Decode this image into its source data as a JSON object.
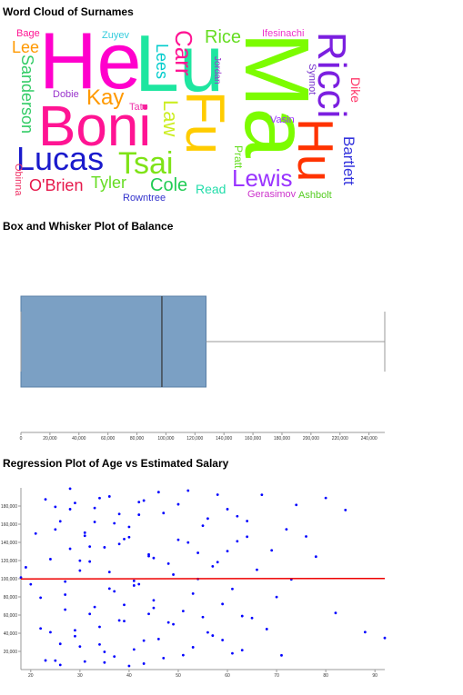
{
  "chart_data": [
    {
      "type": "wordcloud",
      "title": "Word Cloud of Surnames",
      "words": [
        {
          "text": "He",
          "value": 88,
          "color": "#ff00cc"
        },
        {
          "text": "Lu",
          "value": 88,
          "color": "#1ee6a0"
        },
        {
          "text": "Ma",
          "value": 100,
          "color": "#7cfc00"
        },
        {
          "text": "Boni",
          "value": 62,
          "color": "#ff1493"
        },
        {
          "text": "Lucas",
          "value": 36,
          "color": "#1a1acc"
        },
        {
          "text": "Tsai",
          "value": 34,
          "color": "#7fe317"
        },
        {
          "text": "Fu",
          "value": 60,
          "color": "#ffcc00"
        },
        {
          "text": "Hu",
          "value": 55,
          "color": "#ff3300"
        },
        {
          "text": "Ricci",
          "value": 44,
          "color": "#7b1fe0"
        },
        {
          "text": "Carr",
          "value": 26,
          "color": "#ff1493"
        },
        {
          "text": "Rice",
          "value": 20,
          "color": "#66dd22"
        },
        {
          "text": "Lewis",
          "value": 26,
          "color": "#9933ff"
        },
        {
          "text": "Kay",
          "value": 24,
          "color": "#ff9900"
        },
        {
          "text": "Sanderson",
          "value": 18,
          "color": "#33cc66"
        },
        {
          "text": "Lee",
          "value": 18,
          "color": "#ff9900"
        },
        {
          "text": "Bage",
          "value": 11,
          "color": "#ff1493"
        },
        {
          "text": "Zuyev",
          "value": 11,
          "color": "#33ccdd"
        },
        {
          "text": "Lees",
          "value": 18,
          "color": "#00cccc"
        },
        {
          "text": "Law",
          "value": 22,
          "color": "#ccee22"
        },
        {
          "text": "Cole",
          "value": 20,
          "color": "#22cc55"
        },
        {
          "text": "Tyler",
          "value": 18,
          "color": "#66dd22"
        },
        {
          "text": "O'Brien",
          "value": 18,
          "color": "#e6194b"
        },
        {
          "text": "Read",
          "value": 14,
          "color": "#22ddaa"
        },
        {
          "text": "Rowntree",
          "value": 11,
          "color": "#3333cc"
        },
        {
          "text": "Gerasimov",
          "value": 11,
          "color": "#cc33cc"
        },
        {
          "text": "Ashbolt",
          "value": 11,
          "color": "#55cc22"
        },
        {
          "text": "Bartlett",
          "value": 17,
          "color": "#3333dd"
        },
        {
          "text": "Dike",
          "value": 14,
          "color": "#ff3366"
        },
        {
          "text": "Vasin",
          "value": 11,
          "color": "#9933ff"
        },
        {
          "text": "Pratt",
          "value": 12,
          "color": "#66dd22"
        },
        {
          "text": "Obinna",
          "value": 11,
          "color": "#ee3366"
        },
        {
          "text": "Dobie",
          "value": 11,
          "color": "#9933cc"
        },
        {
          "text": "Tate",
          "value": 11,
          "color": "#ee33aa"
        },
        {
          "text": "Jordan",
          "value": 10,
          "color": "#9933cc"
        },
        {
          "text": "Ifesinachi",
          "value": 11,
          "color": "#ee33cc"
        },
        {
          "text": "Synnot",
          "value": 11,
          "color": "#7733cc"
        }
      ]
    },
    {
      "type": "box",
      "title": "Box and Whisker Plot of Balance",
      "min": 0,
      "q1": 0,
      "median": 97199,
      "q3": 127644,
      "max": 250898,
      "color": "#7ba0c4",
      "xlim": [
        0,
        250898
      ],
      "xticks": [
        0,
        {
          "value": 20000,
          "label": "20,000"
        },
        {
          "value": 40000,
          "label": "40,000"
        },
        {
          "value": 60000,
          "label": "60,000"
        },
        {
          "value": 80000,
          "label": "80,000"
        },
        {
          "value": 100000,
          "label": "100,000"
        },
        {
          "value": 120000,
          "label": "120,000"
        },
        {
          "value": 140000,
          "label": "140,000"
        },
        {
          "value": 160000,
          "label": "160,000"
        },
        {
          "value": 180000,
          "label": "180,000"
        },
        {
          "value": 200000,
          "label": "200,000"
        },
        {
          "value": 220000,
          "label": "220,000"
        },
        {
          "value": 240000,
          "label": "240,000"
        }
      ]
    },
    {
      "type": "scatter",
      "title": "Regression Plot of Age vs Estimated Salary",
      "color": "#0000ff",
      "x": [
        18,
        19,
        20,
        21,
        22,
        23,
        24,
        25,
        26,
        27,
        28,
        29,
        30,
        31,
        32,
        33,
        34,
        35,
        36,
        37,
        38,
        39,
        40,
        41,
        42,
        43,
        44,
        45,
        46,
        47,
        48,
        49,
        50,
        51,
        52,
        53,
        54,
        55,
        56,
        57,
        25,
        26,
        27,
        28,
        29,
        30,
        31,
        32,
        33,
        34,
        35,
        36,
        37,
        38,
        39,
        40,
        41,
        42,
        43,
        44,
        45,
        46,
        47,
        48,
        49,
        50,
        51,
        52,
        53,
        54,
        55,
        56,
        57,
        58,
        59,
        60,
        61,
        62,
        63,
        64,
        22,
        23,
        24,
        25,
        26,
        27,
        28,
        29,
        30,
        31,
        32,
        33,
        34,
        35,
        36,
        37,
        38,
        39,
        40,
        41,
        42,
        43,
        44,
        45,
        58,
        59,
        60,
        61,
        62,
        63,
        64,
        65,
        66,
        67,
        68,
        69,
        70,
        71,
        72,
        73,
        74,
        76,
        78,
        80,
        82,
        84,
        88,
        92
      ],
      "values": [
        101348,
        112542,
        93826,
        149756,
        79084,
        10062,
        41132,
        179093,
        5097,
        65951,
        132940,
        183376,
        25398,
        147223,
        118913,
        162456,
        47012,
        7802,
        190542,
        86127,
        138213,
        71216,
        157033,
        22150,
        94001,
        186044,
        61244,
        122790,
        33657,
        172310,
        51872,
        104550,
        142897,
        15832,
        197006,
        83612,
        128460,
        57734,
        166210,
        37420,
        154220,
        28310,
        96880,
        176540,
        43220,
        119870,
        8850,
        135400,
        68900,
        188760,
        19450,
        107330,
        160990,
        54120,
        143650,
        3980,
        92540,
        170420,
        31870,
        126740,
        76230,
        195310,
        12640,
        116590,
        49870,
        181920,
        64410,
        139880,
        24560,
        99730,
        158340,
        40910,
        113620,
        192470,
        72180,
        130350,
        17890,
        168750,
        58930,
        146210,
        45230,
        187340,
        121560,
        9870,
        163210,
        82450,
        199120,
        36780,
        108940,
        150670,
        61230,
        177890,
        27650,
        134560,
        89120,
        14320,
        171230,
        53340,
        145780,
        97650,
        184320,
        6540,
        124870,
        67890,
        118230,
        32450,
        176540,
        88760,
        141230,
        21340,
        163450,
        56780,
        109870,
        192340,
        44560,
        131230,
        79870,
        15670,
        154320,
        99230,
        181230,
        146500,
        124300,
        188900,
        62300,
        175600,
        41200,
        34800
      ],
      "regression": {
        "x": [
          18,
          92
        ],
        "values": [
          99800,
          100300
        ],
        "color": "#ee0000"
      },
      "xlim": [
        18,
        92
      ],
      "xticks": [
        20,
        30,
        40,
        50,
        60,
        70,
        80,
        90
      ],
      "ylim": [
        0,
        200000
      ],
      "yticks": [
        {
          "value": 20000,
          "label": "20,000"
        },
        {
          "value": 40000,
          "label": "40,000"
        },
        {
          "value": 60000,
          "label": "60,000"
        },
        {
          "value": 80000,
          "label": "80,000"
        },
        {
          "value": 100000,
          "label": "100,000"
        },
        {
          "value": 120000,
          "label": "120,000"
        },
        {
          "value": 140000,
          "label": "140,000"
        },
        {
          "value": 160000,
          "label": "160,000"
        },
        {
          "value": 180000,
          "label": "180,000"
        }
      ]
    }
  ]
}
